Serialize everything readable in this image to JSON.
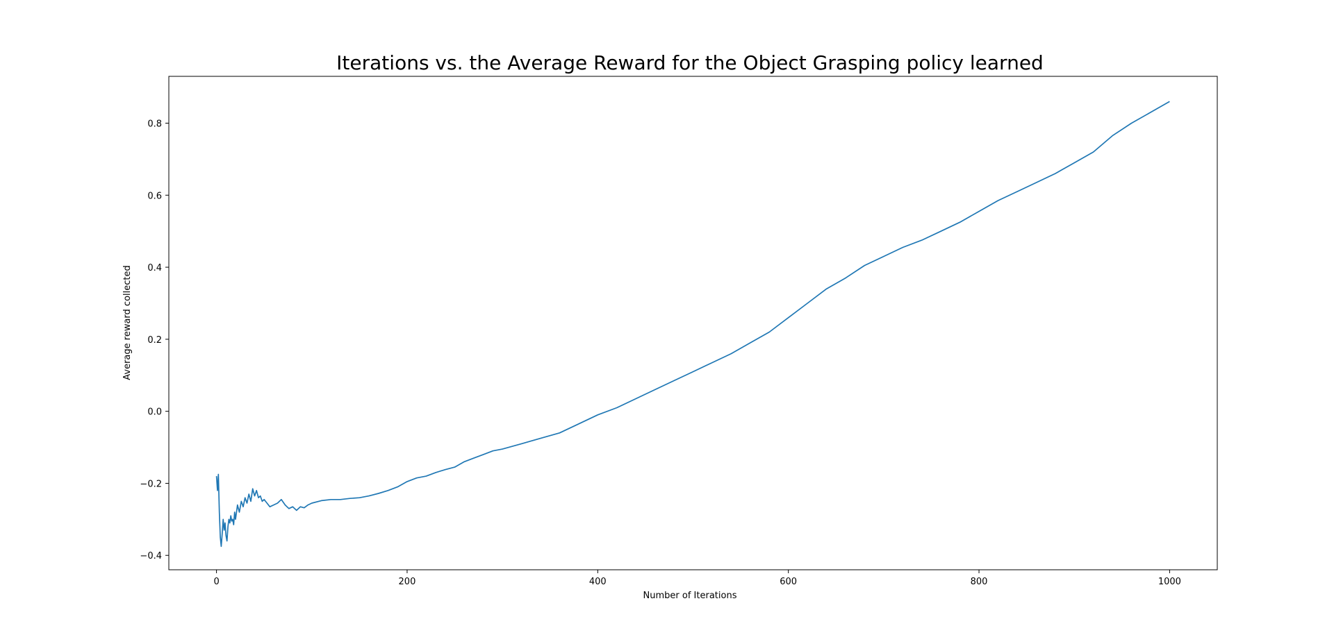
{
  "chart_data": {
    "type": "line",
    "title": "Iterations vs. the Average Reward for the Object Grasping policy learned",
    "xlabel": "Number of Iterations",
    "ylabel": "Average reward collected",
    "xlim": [
      -50,
      1050
    ],
    "ylim": [
      -0.44,
      0.93
    ],
    "xticks": [
      0,
      200,
      400,
      600,
      800,
      1000
    ],
    "xtick_labels": [
      "0",
      "200",
      "400",
      "600",
      "800",
      "1000"
    ],
    "yticks": [
      -0.4,
      -0.2,
      0.0,
      0.2,
      0.4,
      0.6,
      0.8
    ],
    "ytick_labels": [
      "−0.4",
      "−0.2",
      "0.0",
      "0.2",
      "0.4",
      "0.6",
      "0.8"
    ],
    "grid": false,
    "series": [
      {
        "color": "#1f77b4",
        "x": [
          0,
          1,
          2,
          3,
          4,
          5,
          6,
          7,
          8,
          9,
          10,
          11,
          12,
          13,
          14,
          15,
          16,
          17,
          18,
          19,
          20,
          22,
          24,
          26,
          28,
          30,
          32,
          34,
          36,
          38,
          40,
          42,
          44,
          46,
          48,
          50,
          53,
          56,
          60,
          64,
          68,
          72,
          76,
          80,
          84,
          88,
          92,
          96,
          100,
          110,
          120,
          130,
          140,
          150,
          160,
          170,
          180,
          190,
          200,
          210,
          220,
          230,
          240,
          250,
          260,
          270,
          280,
          290,
          300,
          320,
          340,
          360,
          380,
          400,
          420,
          440,
          460,
          480,
          500,
          520,
          540,
          560,
          580,
          600,
          620,
          640,
          660,
          680,
          700,
          720,
          740,
          760,
          780,
          800,
          820,
          840,
          860,
          880,
          900,
          920,
          940,
          960,
          980,
          1000
        ],
        "y": [
          -0.18,
          -0.22,
          -0.175,
          -0.28,
          -0.35,
          -0.375,
          -0.34,
          -0.3,
          -0.33,
          -0.31,
          -0.345,
          -0.36,
          -0.32,
          -0.3,
          -0.31,
          -0.29,
          -0.305,
          -0.3,
          -0.315,
          -0.28,
          -0.3,
          -0.26,
          -0.28,
          -0.25,
          -0.265,
          -0.24,
          -0.255,
          -0.23,
          -0.25,
          -0.215,
          -0.235,
          -0.22,
          -0.24,
          -0.235,
          -0.25,
          -0.245,
          -0.255,
          -0.265,
          -0.26,
          -0.255,
          -0.245,
          -0.26,
          -0.27,
          -0.265,
          -0.275,
          -0.265,
          -0.268,
          -0.26,
          -0.255,
          -0.248,
          -0.245,
          -0.245,
          -0.242,
          -0.24,
          -0.235,
          -0.228,
          -0.22,
          -0.21,
          -0.195,
          -0.185,
          -0.18,
          -0.17,
          -0.162,
          -0.155,
          -0.14,
          -0.13,
          -0.12,
          -0.11,
          -0.105,
          -0.09,
          -0.075,
          -0.06,
          -0.035,
          -0.01,
          0.01,
          0.035,
          0.06,
          0.085,
          0.11,
          0.135,
          0.16,
          0.19,
          0.22,
          0.26,
          0.3,
          0.34,
          0.37,
          0.405,
          0.43,
          0.455,
          0.475,
          0.5,
          0.525,
          0.555,
          0.585,
          0.61,
          0.635,
          0.66,
          0.69,
          0.72,
          0.765,
          0.8,
          0.83,
          0.86
        ]
      }
    ]
  }
}
